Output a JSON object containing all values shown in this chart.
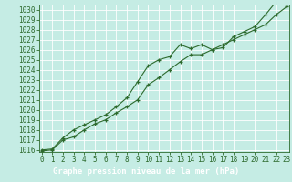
{
  "title": "Graphe pression niveau de la mer (hPa)",
  "bg_color": "#c5ece4",
  "grid_color": "#ffffff",
  "line_color": "#2d6a2d",
  "ylim_min": 1016,
  "ylim_max": 1030.5,
  "xlim_min": 0,
  "xlim_max": 23,
  "yticks": [
    1016,
    1017,
    1018,
    1019,
    1020,
    1021,
    1022,
    1023,
    1024,
    1025,
    1026,
    1027,
    1028,
    1029,
    1030
  ],
  "xticks": [
    0,
    1,
    2,
    3,
    4,
    5,
    6,
    7,
    8,
    9,
    10,
    11,
    12,
    13,
    14,
    15,
    16,
    17,
    18,
    19,
    20,
    21,
    22,
    23
  ],
  "series1_x": [
    0,
    1,
    2,
    3,
    4,
    5,
    6,
    7,
    8,
    9,
    10,
    11,
    12,
    13,
    14,
    15,
    16,
    17,
    18,
    19,
    20,
    21,
    22,
    23
  ],
  "series1_y": [
    1016.0,
    1016.1,
    1017.2,
    1018.0,
    1018.5,
    1019.0,
    1019.5,
    1020.3,
    1021.2,
    1022.8,
    1024.4,
    1025.0,
    1025.3,
    1026.5,
    1026.1,
    1026.5,
    1026.0,
    1026.2,
    1027.3,
    1027.8,
    1028.3,
    1029.5,
    1030.8,
    1030.5
  ],
  "series2_x": [
    0,
    1,
    2,
    3,
    4,
    5,
    6,
    7,
    8,
    9,
    10,
    11,
    12,
    13,
    14,
    15,
    16,
    17,
    18,
    19,
    20,
    21,
    22,
    23
  ],
  "series2_y": [
    1015.9,
    1016.0,
    1017.0,
    1017.3,
    1018.0,
    1018.6,
    1019.0,
    1019.7,
    1020.3,
    1021.0,
    1022.5,
    1023.2,
    1024.0,
    1024.8,
    1025.5,
    1025.5,
    1026.0,
    1026.5,
    1027.0,
    1027.5,
    1028.0,
    1028.5,
    1029.5,
    1030.3
  ],
  "marker": "+",
  "markersize": 3.5,
  "linewidth": 0.8,
  "title_fontsize": 6.5,
  "tick_fontsize": 5.5,
  "bottom_bar_color": "#2d5a1b",
  "bottom_bar_text_color": "#ffffff"
}
